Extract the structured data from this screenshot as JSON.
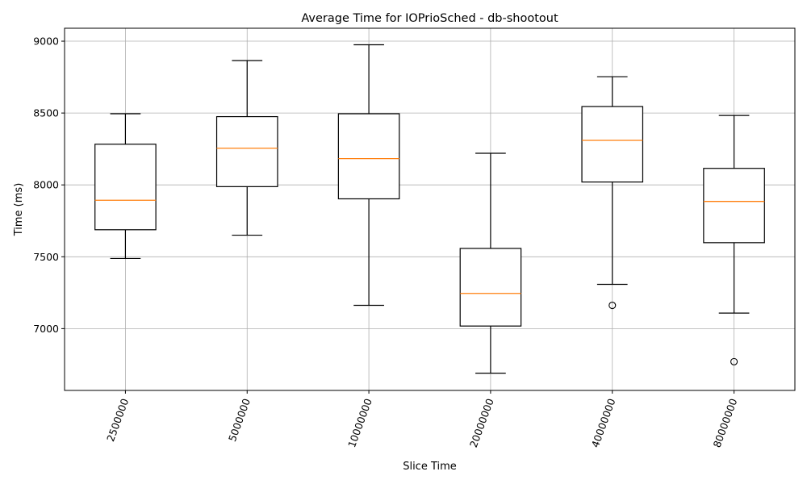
{
  "chart_data": {
    "type": "box",
    "title": "Average Time for IOPrioSched - db-shootout",
    "xlabel": "Slice Time",
    "ylabel": "Time (ms)",
    "ylim": [
      6570,
      9090
    ],
    "yticks": [
      7000,
      7500,
      8000,
      8500,
      9000
    ],
    "grid": true,
    "categories": [
      "2500000",
      "5000000",
      "10000000",
      "20000000",
      "40000000",
      "80000000"
    ],
    "boxes": [
      {
        "whisker_low": 7488,
        "q1": 7688,
        "median": 7893,
        "q3": 8283,
        "whisker_high": 8495,
        "outliers": []
      },
      {
        "whisker_low": 7650,
        "q1": 7988,
        "median": 8255,
        "q3": 8475,
        "whisker_high": 8865,
        "outliers": []
      },
      {
        "whisker_low": 7162,
        "q1": 7903,
        "median": 8183,
        "q3": 8495,
        "whisker_high": 8975,
        "outliers": []
      },
      {
        "whisker_low": 6690,
        "q1": 7018,
        "median": 7245,
        "q3": 7558,
        "whisker_high": 8220,
        "outliers": []
      },
      {
        "whisker_low": 7308,
        "q1": 8020,
        "median": 8310,
        "q3": 8545,
        "whisker_high": 8753,
        "outliers": [
          7162
        ]
      },
      {
        "whisker_low": 7108,
        "q1": 7598,
        "median": 7885,
        "q3": 8115,
        "whisker_high": 8483,
        "outliers": [
          6770
        ]
      }
    ],
    "colors": {
      "box": "#000000",
      "median": "#ff7f0e",
      "grid": "#b0b0b0"
    }
  }
}
